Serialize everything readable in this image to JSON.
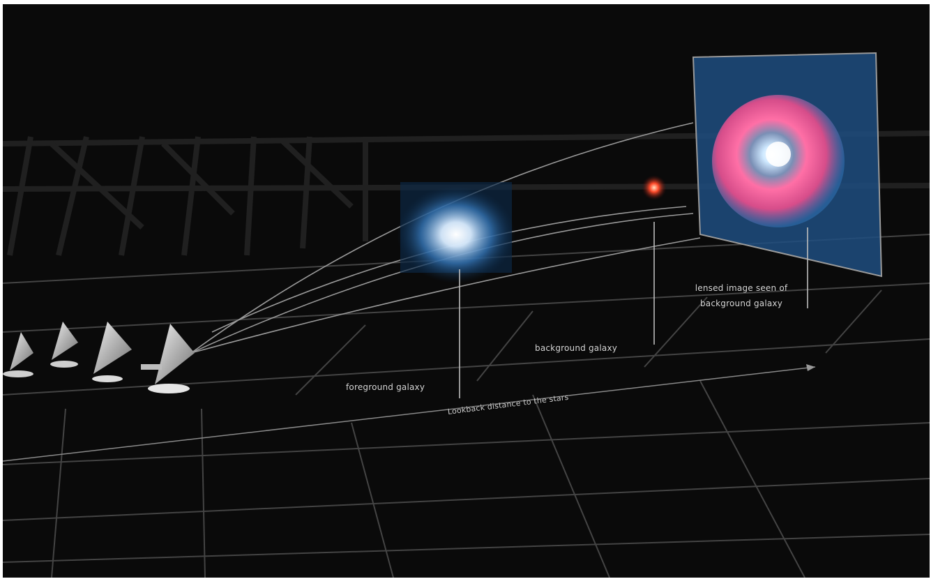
{
  "labels": {
    "foreground_galaxy": "foreground galaxy",
    "background_galaxy": "background galaxy",
    "lensed_image_line1": "lensed image seen of",
    "lensed_image_line2": "background galaxy",
    "distance_axis": "Lookback distance to the stars"
  },
  "colors": {
    "background": "#0a0a0a",
    "grid": "#4a4a4a",
    "light_rays": "#9a9a9a",
    "foreground_galaxy_glow": "#8fc4ff",
    "background_galaxy_core": "#ff5a3c",
    "lensed_pink": "#ff6fa6",
    "lensed_blue": "#2f6fb0"
  },
  "icons": {
    "telescopes": "radio-telescope-dish-icon",
    "foreground": "galaxy-glow-icon",
    "background": "red-galaxy-icon",
    "lensed": "lensed-image-icon"
  }
}
